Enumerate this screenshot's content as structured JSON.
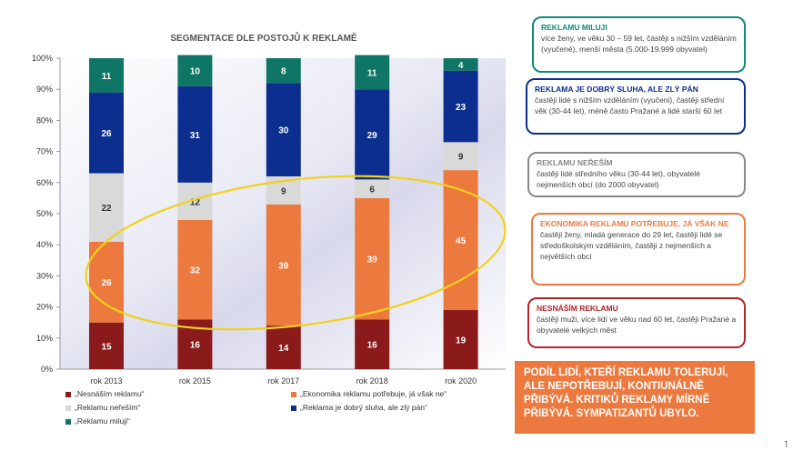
{
  "chart_data": {
    "type": "bar",
    "stacked": true,
    "title": "SEGMENTACE DLE POSTOJŮ K REKLAMĚ",
    "categories": [
      "rok 2013",
      "rok 2015",
      "rok 2017",
      "rok 2018",
      "rok 2020"
    ],
    "y_ticks": [
      "0%",
      "10%",
      "20%",
      "30%",
      "40%",
      "50%",
      "60%",
      "70%",
      "80%",
      "90%",
      "100%"
    ],
    "ylim": [
      0,
      100
    ],
    "grid": false,
    "series": [
      {
        "name": "„Nesnáším reklamu“",
        "color": "#8b1a1a",
        "values": [
          15,
          16,
          14,
          16,
          19
        ]
      },
      {
        "name": "„Ekonomika reklamu potřebuje, já však ne“",
        "color": "#ec7a3f",
        "values": [
          26,
          32,
          39,
          39,
          45
        ]
      },
      {
        "name": "„Reklamu neřeším“",
        "color": "#d9d9d9",
        "values": [
          22,
          12,
          9,
          6,
          9
        ]
      },
      {
        "name": "„Reklama je dobrý sluha, ale zlý pán“",
        "color": "#0c2f8f",
        "values": [
          26,
          31,
          30,
          29,
          23
        ]
      },
      {
        "name": "„Reklamu miluji“",
        "color": "#0f7565",
        "values": [
          11,
          10,
          8,
          11,
          4
        ]
      }
    ]
  },
  "callouts": [
    {
      "title": "REKLAMU MILUJI",
      "text": "více ženy, ve věku 30 – 59 let, částěji s nižším vzděláním (vyučené), menší města (5.000-19.999 obyvatel)",
      "color": "#0f8a76"
    },
    {
      "title": "REKLAMA JE DOBRÝ SLUHA, ALE ZLÝ PÁN",
      "text": "častěji lidé s nižším vzděláním (vyučeni), častěji střední věk (30-44 let), méně často Pražané a lidé starší 60 let",
      "color": "#0c2f8f"
    },
    {
      "title": "REKLAMU NEŘEŠÍM",
      "text": "častěji lidé středního věku (30-44 let), obyvatelé nejmenších obcí (do 2000 obyvatel)",
      "color": "#888888"
    },
    {
      "title": "EKONOMIKA REKLAMU POTŘEBUJE, JÁ VŠAK NE",
      "text": "častěji ženy, mladá generace do 29 let, častěji lidé se středoškolským vzděláním, častěji z nejmenších a největších obcí",
      "color": "#ec7a3f"
    },
    {
      "title": "NESNÁŠÍM REKLAMU",
      "text": "častěji muži, více lidí ve věku nad 60 let, častěji Pražané a obyvatelé velkých měst",
      "color": "#b0242a"
    }
  ],
  "summary": "PODÍL LIDÍ, KTEŘÍ REKLAMU TOLERUJÍ, ALE NEPOTŘEBUJÍ, KONTIUNÁLNĚ PŘIBÝVÁ. KRITIKŮ REKLAMY MÍRNĚ PŘIBÝVÁ. SYMPATIZANTŮ UBYLO.",
  "tick_char": "˥",
  "colors": {
    "ellipse": "#f2d21a",
    "summary_bg": "#ec7a3f"
  }
}
